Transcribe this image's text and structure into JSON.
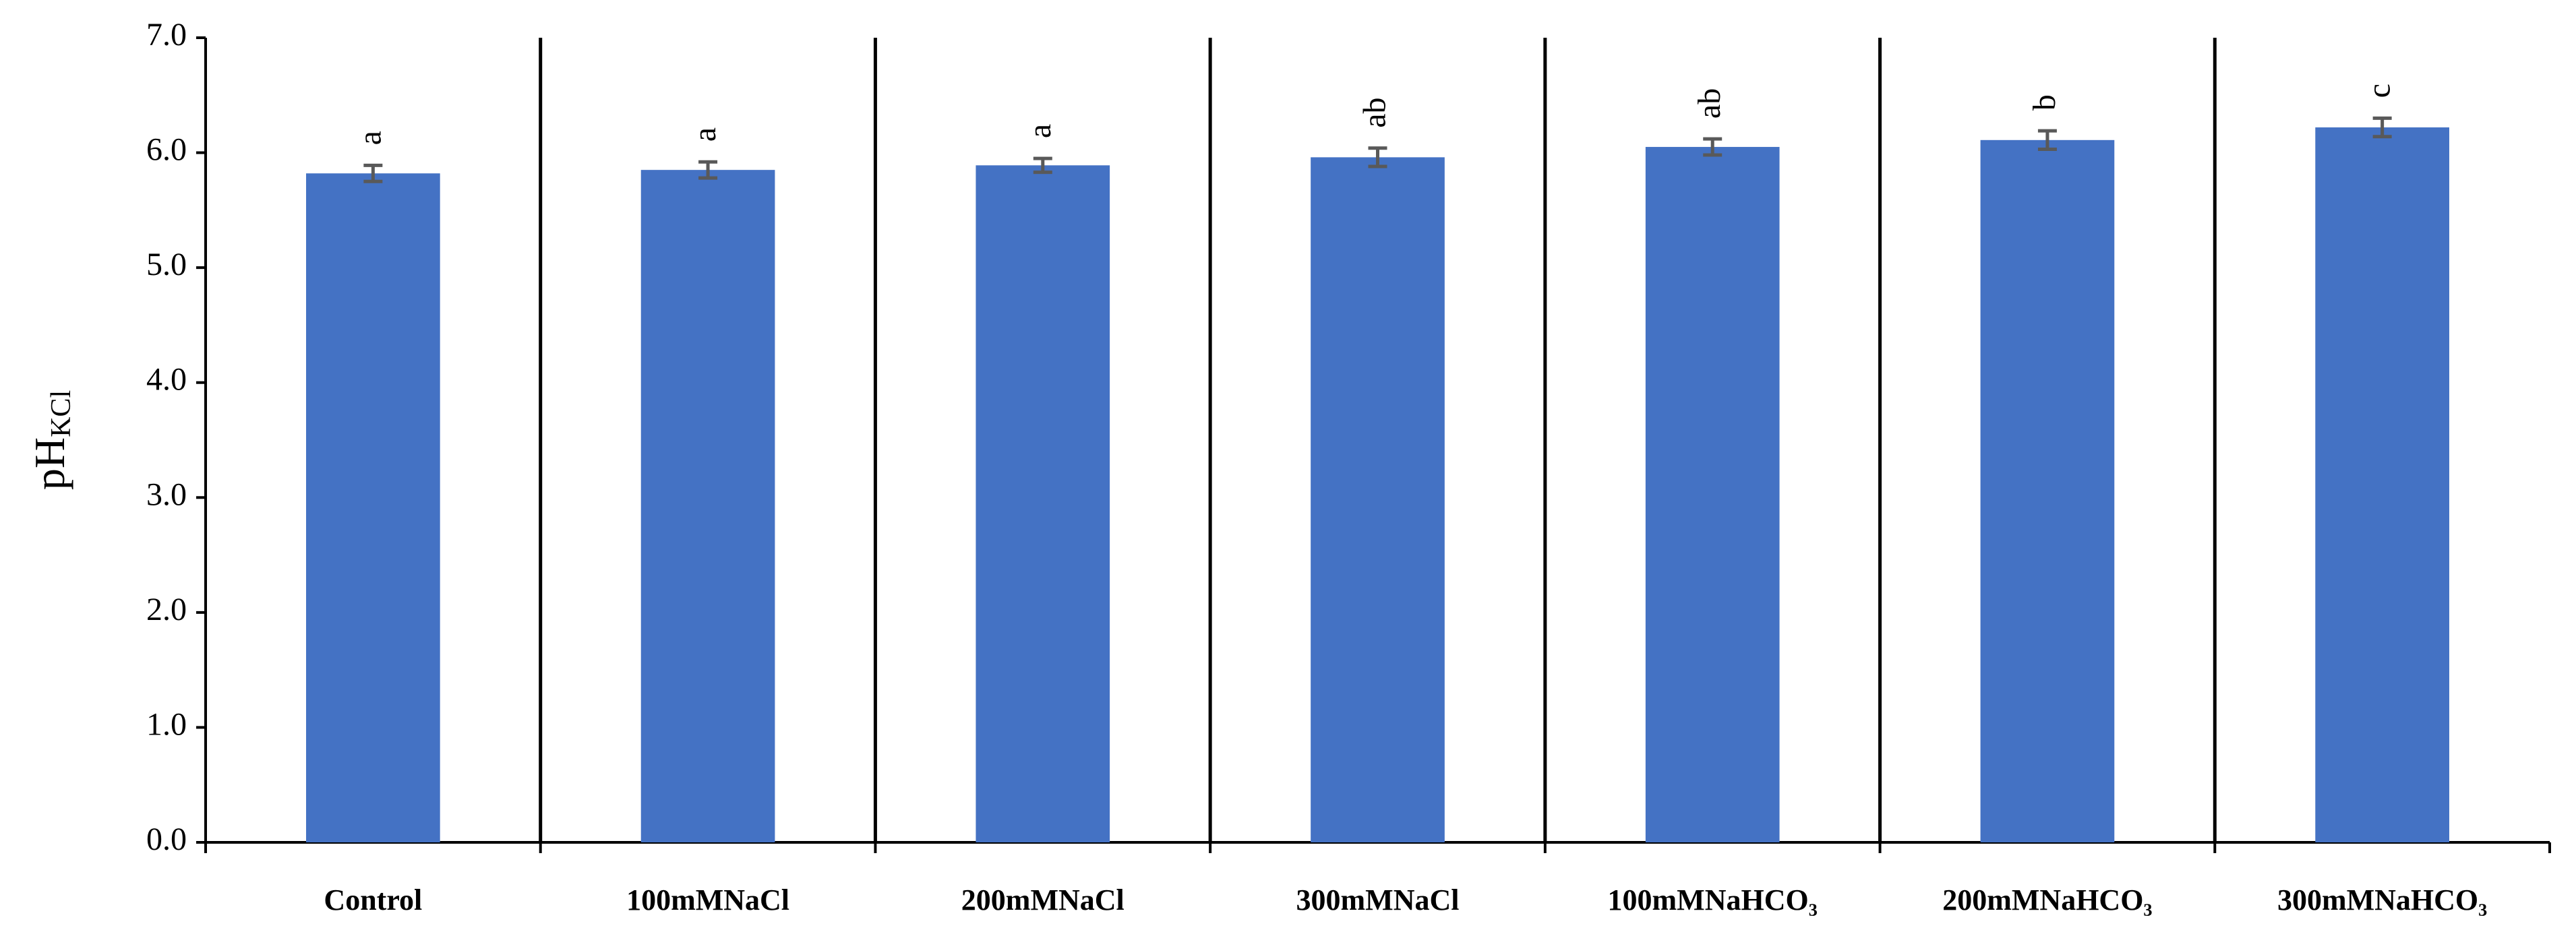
{
  "chart_data": {
    "type": "bar",
    "y_label": {
      "main": "pH",
      "sub": "KCl"
    },
    "categories": [
      "Control",
      "100mMNaCl",
      "200mMNaCl",
      "300mMNaCl",
      "100mMNaHCO₃",
      "200mMNaHCO₃",
      "300mMNaHCO₃"
    ],
    "values": [
      5.82,
      5.85,
      5.89,
      5.96,
      6.05,
      6.11,
      6.22
    ],
    "errors": [
      0.07,
      0.07,
      0.06,
      0.08,
      0.07,
      0.08,
      0.08
    ],
    "letters": [
      "a",
      "a",
      "a",
      "ab",
      "ab",
      "b",
      "c"
    ],
    "color": "#4472c4",
    "error_color": "#595959",
    "ylim": [
      0,
      7
    ],
    "yticks": [
      {
        "value": 0,
        "label": "0.0"
      },
      {
        "value": 1,
        "label": "1.0"
      },
      {
        "value": 2,
        "label": "2.0"
      },
      {
        "value": 3,
        "label": "3.0"
      },
      {
        "value": 4,
        "label": "4.0"
      },
      {
        "value": 5,
        "label": "5.0"
      },
      {
        "value": 6,
        "label": "6.0"
      },
      {
        "value": 7,
        "label": "7.0"
      }
    ],
    "grid": false
  }
}
